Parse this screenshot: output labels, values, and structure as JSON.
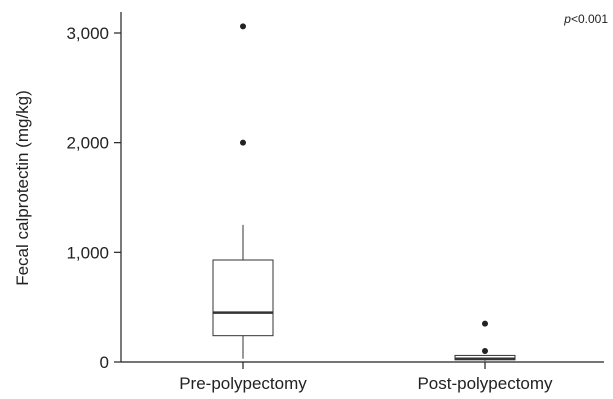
{
  "chart_data": {
    "type": "boxplot",
    "categories": [
      "Pre-polypectomy",
      "Post-polypectomy"
    ],
    "ylabel": "Fecal calprotectin (mg/kg)",
    "ylim": [
      0,
      3000
    ],
    "yticks": [
      0,
      1000,
      2000,
      3000
    ],
    "ytick_labels": [
      "0",
      "1,000",
      "2,000",
      "3,000"
    ],
    "annotation": {
      "p_symbol": "p",
      "p_rest": "<0.001",
      "placement": "top-right"
    },
    "boxes": [
      {
        "category": "Pre-polypectomy",
        "whisker_low": 30,
        "q1": 240,
        "median": 450,
        "q3": 930,
        "whisker_high": 1250,
        "outliers": [
          2000,
          3060
        ]
      },
      {
        "category": "Post-polypectomy",
        "whisker_low": 10,
        "q1": 20,
        "median": 30,
        "q3": 60,
        "whisker_high": 60,
        "outliers": [
          100,
          350
        ]
      }
    ],
    "grid": false,
    "colors": {
      "axis": "#222222",
      "box_fill": "#ffffff",
      "box_stroke": "#333333",
      "outlier": "#222222"
    }
  }
}
